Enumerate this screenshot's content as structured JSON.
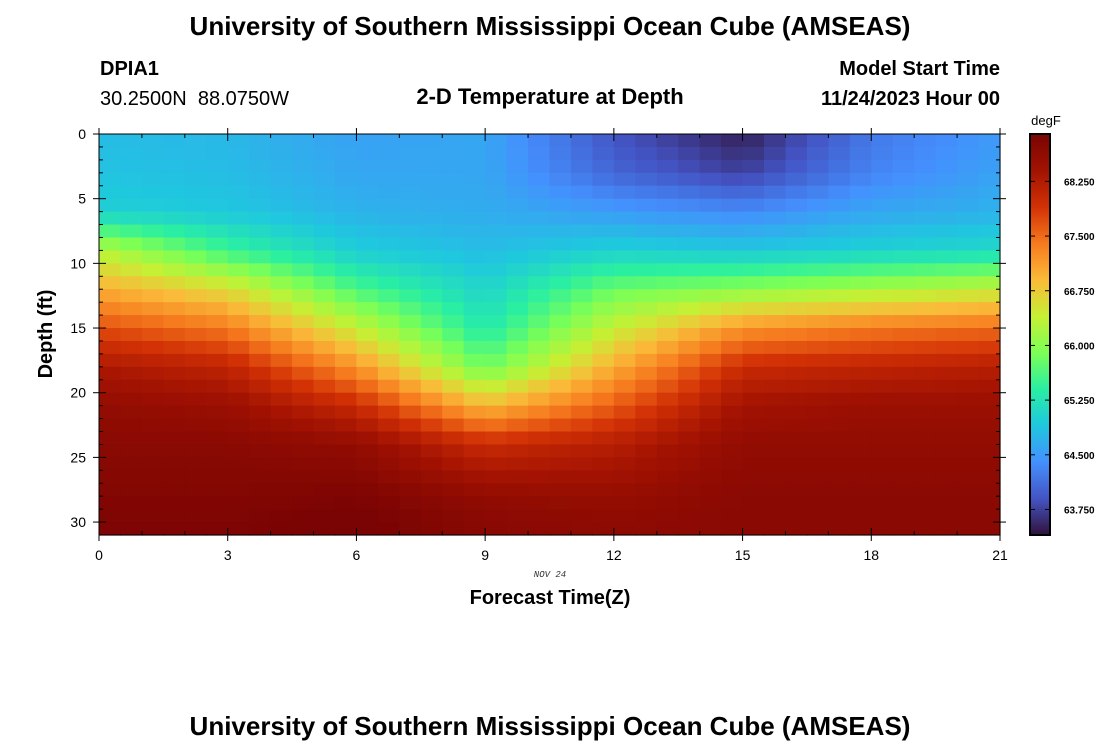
{
  "header": {
    "title": "University of Southern Mississippi Ocean Cube (AMSEAS)",
    "station_id": "DPIA1",
    "coordinates": "30.2500N  88.0750W",
    "chart_heading": "2-D Temperature at Depth",
    "model_start_label": "Model Start Time",
    "model_start_value": "11/24/2023 Hour 00"
  },
  "footer": {
    "title": "University of Southern Mississippi Ocean Cube (AMSEAS)"
  },
  "chart_data": {
    "type": "heatmap",
    "title": "2-D Temperature at Depth",
    "xlabel": "Forecast Time(Z)",
    "ylabel": "Depth (ft)",
    "date_label": "NOV 24",
    "x_ticks": [
      "0",
      "3",
      "6",
      "9",
      "12",
      "15",
      "18",
      "21"
    ],
    "y_ticks": [
      "0",
      "5",
      "10",
      "15",
      "20",
      "25",
      "30"
    ],
    "xlim": [
      0,
      21
    ],
    "ylim": [
      0,
      31
    ],
    "colorbar": {
      "unit": "degF",
      "ticks": [
        "63.750",
        "64.500",
        "65.250",
        "66.000",
        "66.750",
        "67.500",
        "68.250"
      ],
      "range": [
        63.4,
        68.9
      ]
    },
    "colors": [
      "#30123b",
      "#4454c4",
      "#4490fe",
      "#1fc8de",
      "#29efa2",
      "#7cff55",
      "#c5f034",
      "#faba39",
      "#f67a1e",
      "#d23105",
      "#a21202",
      "#7a0403"
    ],
    "grid": false,
    "columns": [
      {
        "t": 0.0,
        "depths": [
          0,
          3,
          6,
          9,
          12,
          15,
          18,
          21,
          24,
          28,
          30
        ],
        "temps": [
          64.8,
          64.85,
          65.0,
          66.3,
          67.0,
          67.7,
          68.3,
          68.6,
          68.7,
          68.8,
          68.85
        ]
      },
      {
        "t": 3.0,
        "depths": [
          0,
          3,
          6,
          9,
          12,
          15,
          18,
          21,
          24,
          28,
          30
        ],
        "temps": [
          64.75,
          64.8,
          64.9,
          65.5,
          66.6,
          67.4,
          68.1,
          68.5,
          68.7,
          68.8,
          68.85
        ]
      },
      {
        "t": 6.0,
        "depths": [
          0,
          3,
          6,
          9,
          12,
          15,
          18,
          21,
          24,
          28,
          30
        ],
        "temps": [
          64.55,
          64.6,
          64.7,
          64.95,
          65.6,
          66.4,
          67.2,
          68.0,
          68.6,
          68.85,
          68.95
        ]
      },
      {
        "t": 9.0,
        "depths": [
          0,
          3,
          6,
          9,
          12,
          15,
          18,
          21,
          24,
          28,
          30
        ],
        "temps": [
          64.6,
          64.6,
          64.65,
          64.8,
          65.05,
          65.3,
          65.8,
          66.9,
          68.0,
          68.6,
          68.7
        ]
      },
      {
        "t": 12.0,
        "depths": [
          0,
          3,
          6,
          9,
          12,
          15,
          18,
          21,
          24,
          28,
          30
        ],
        "temps": [
          63.9,
          64.05,
          64.5,
          65.0,
          65.8,
          66.4,
          67.0,
          67.6,
          68.2,
          68.55,
          68.65
        ]
      },
      {
        "t": 15.0,
        "depths": [
          0,
          3,
          6,
          9,
          12,
          15,
          18,
          21,
          24,
          28,
          30
        ],
        "temps": [
          63.5,
          63.75,
          64.35,
          64.9,
          66.0,
          67.2,
          68.0,
          68.4,
          68.6,
          68.7,
          68.7
        ]
      },
      {
        "t": 18.0,
        "depths": [
          0,
          3,
          6,
          9,
          12,
          15,
          18,
          21,
          24,
          28,
          30
        ],
        "temps": [
          64.2,
          64.3,
          64.6,
          65.0,
          66.2,
          67.4,
          68.1,
          68.5,
          68.6,
          68.7,
          68.7
        ]
      },
      {
        "t": 21.0,
        "depths": [
          0,
          3,
          6,
          9,
          12,
          15,
          18,
          21,
          24,
          28,
          30
        ],
        "temps": [
          64.5,
          64.55,
          64.7,
          65.1,
          66.4,
          67.5,
          68.2,
          68.5,
          68.6,
          68.7,
          68.7
        ]
      }
    ]
  }
}
